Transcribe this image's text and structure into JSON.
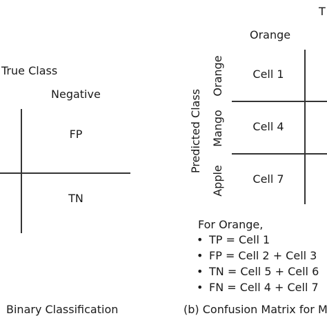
{
  "panel_a": {
    "axis_label": "True Class",
    "column_header": "Negative",
    "cells": [
      "FP",
      "TN"
    ],
    "caption": "Binary Classification"
  },
  "panel_b": {
    "top_label_fragment": "T",
    "column_header": "Orange",
    "row_axis_label": "Predicted Class",
    "row_labels": [
      "Orange",
      "Mango",
      "Apple"
    ],
    "cells": [
      "Cell 1",
      "Cell 4",
      "Cell 7"
    ],
    "notes_title": "For Orange,",
    "notes": [
      "TP = Cell 1",
      "FP = Cell 2 + Cell 3",
      "TN = Cell 5 + Cell 6",
      "FN = Cell 4 + Cell 7"
    ],
    "caption": "(b) Confusion Matrix for M"
  }
}
